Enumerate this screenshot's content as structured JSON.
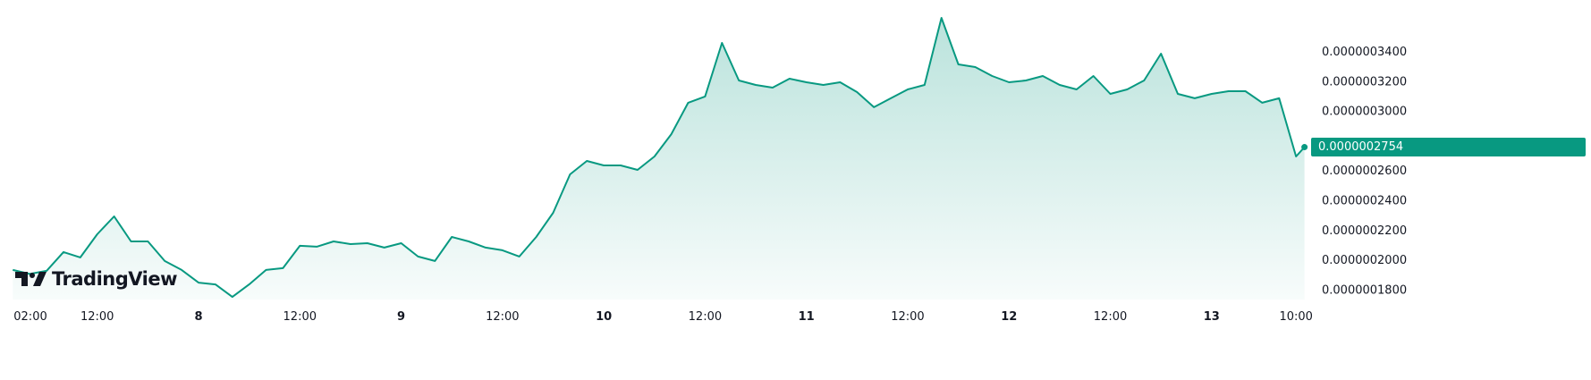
{
  "chart_data": {
    "type": "area",
    "title": "",
    "xlabel": "",
    "ylabel": "",
    "x_ticks": [
      {
        "label": "02:00",
        "time": "7 02:00",
        "bold": false
      },
      {
        "label": "12:00",
        "time": "7 12:00",
        "bold": false
      },
      {
        "label": "8",
        "time": "8 00:00",
        "bold": true
      },
      {
        "label": "12:00",
        "time": "8 12:00",
        "bold": false
      },
      {
        "label": "9",
        "time": "9 00:00",
        "bold": true
      },
      {
        "label": "12:00",
        "time": "9 12:00",
        "bold": false
      },
      {
        "label": "10",
        "time": "10 00:00",
        "bold": true
      },
      {
        "label": "12:00",
        "time": "10 12:00",
        "bold": false
      },
      {
        "label": "11",
        "time": "11 00:00",
        "bold": true
      },
      {
        "label": "12:00",
        "time": "11 12:00",
        "bold": false
      },
      {
        "label": "12",
        "time": "12 00:00",
        "bold": true
      },
      {
        "label": "12:00",
        "time": "12 12:00",
        "bold": false
      },
      {
        "label": "13",
        "time": "13 00:00",
        "bold": true
      },
      {
        "label": "10:00",
        "time": "13 10:00",
        "bold": false
      }
    ],
    "y_ticks": [
      "0.0000003400",
      "0.0000003200",
      "0.0000003000",
      "0.0000002800",
      "0.0000002600",
      "0.0000002400",
      "0.0000002200",
      "0.0000002000",
      "0.0000001800"
    ],
    "ylim": [
      1.7e-07,
      3.65e-07
    ],
    "grid": false,
    "line_color": "#089981",
    "last_price": "0.0000002754",
    "last_price_value": 2.754e-07,
    "x": [
      "7 02:00",
      "7 04:00",
      "7 06:00",
      "7 08:00",
      "7 10:00",
      "7 12:00",
      "7 14:00",
      "7 16:00",
      "7 18:00",
      "7 20:00",
      "7 22:00",
      "8 00:00",
      "8 02:00",
      "8 04:00",
      "8 06:00",
      "8 08:00",
      "8 10:00",
      "8 12:00",
      "8 14:00",
      "8 16:00",
      "8 18:00",
      "8 20:00",
      "8 22:00",
      "9 00:00",
      "9 02:00",
      "9 04:00",
      "9 06:00",
      "9 08:00",
      "9 10:00",
      "9 12:00",
      "9 14:00",
      "9 16:00",
      "9 18:00",
      "9 20:00",
      "9 22:00",
      "10 00:00",
      "10 02:00",
      "10 04:00",
      "10 06:00",
      "10 08:00",
      "10 10:00",
      "10 12:00",
      "10 14:00",
      "10 16:00",
      "10 18:00",
      "10 20:00",
      "10 22:00",
      "11 00:00",
      "11 02:00",
      "11 04:00",
      "11 06:00",
      "11 08:00",
      "11 10:00",
      "11 12:00",
      "11 14:00",
      "11 16:00",
      "11 18:00",
      "11 20:00",
      "11 22:00",
      "12 00:00",
      "12 02:00",
      "12 04:00",
      "12 06:00",
      "12 08:00",
      "12 10:00",
      "12 12:00",
      "12 14:00",
      "12 16:00",
      "12 18:00",
      "12 20:00",
      "12 22:00",
      "13 00:00",
      "13 02:00",
      "13 04:00",
      "13 06:00",
      "13 08:00",
      "13 10:00",
      "13 11:00"
    ],
    "values": [
      1.929e-07,
      1.902e-07,
      1.923e-07,
      2.049e-07,
      2.013e-07,
      2.169e-07,
      2.289e-07,
      2.121e-07,
      2.121e-07,
      1.989e-07,
      1.929e-07,
      1.844e-07,
      1.832e-07,
      1.748e-07,
      1.832e-07,
      1.929e-07,
      1.941e-07,
      2.091e-07,
      2.085e-07,
      2.121e-07,
      2.103e-07,
      2.109e-07,
      2.079e-07,
      2.109e-07,
      2.019e-07,
      1.989e-07,
      2.151e-07,
      2.121e-07,
      2.079e-07,
      2.061e-07,
      2.019e-07,
      2.151e-07,
      2.313e-07,
      2.571e-07,
      2.661e-07,
      2.631e-07,
      2.631e-07,
      2.601e-07,
      2.691e-07,
      2.841e-07,
      3.052e-07,
      3.094e-07,
      3.454e-07,
      3.202e-07,
      3.172e-07,
      3.154e-07,
      3.214e-07,
      3.19e-07,
      3.172e-07,
      3.19e-07,
      3.124e-07,
      3.022e-07,
      3.082e-07,
      3.142e-07,
      3.172e-07,
      3.622e-07,
      3.31e-07,
      3.292e-07,
      3.232e-07,
      3.19e-07,
      3.202e-07,
      3.232e-07,
      3.172e-07,
      3.142e-07,
      3.232e-07,
      3.112e-07,
      3.142e-07,
      3.202e-07,
      3.382e-07,
      3.112e-07,
      3.082e-07,
      3.112e-07,
      3.13e-07,
      3.13e-07,
      3.052e-07,
      3.082e-07,
      2.691e-07,
      2.754e-07
    ]
  },
  "branding": {
    "logo_text": "TradingView"
  }
}
